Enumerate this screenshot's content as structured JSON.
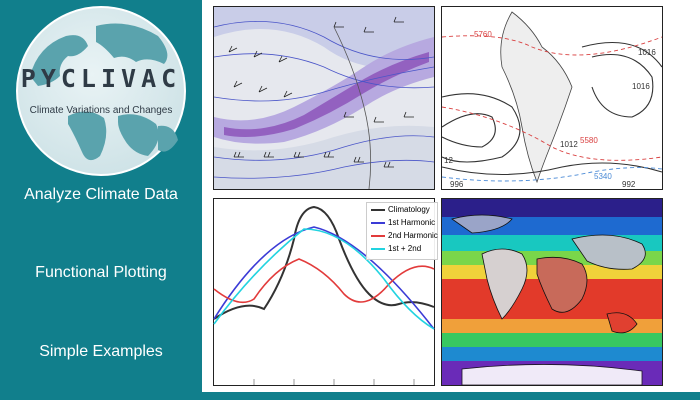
{
  "logo": {
    "title": "PYCLIVAC",
    "subtitle": "Climate Variations and Changes"
  },
  "nav": {
    "items": [
      {
        "label": "Analyze Climate Data"
      },
      {
        "label": "Functional Plotting"
      },
      {
        "label": "Simple Examples"
      }
    ]
  },
  "panels": {
    "contour_labels": [
      "5760",
      "1016",
      "1016",
      "5580",
      "5340",
      "1012",
      "996",
      "992",
      "12"
    ],
    "harmonics_legend": [
      {
        "label": "Climatology",
        "color": "#333333"
      },
      {
        "label": "1st Harmonic",
        "color": "#3b3bd6"
      },
      {
        "label": "2nd Harmonic",
        "color": "#e23b3b"
      },
      {
        "label": "1st + 2nd",
        "color": "#22d3e0"
      }
    ]
  },
  "colors": {
    "sidebar": "#117f8c",
    "menu_text": "#ffffff",
    "logo_text": "#2f3b46"
  }
}
